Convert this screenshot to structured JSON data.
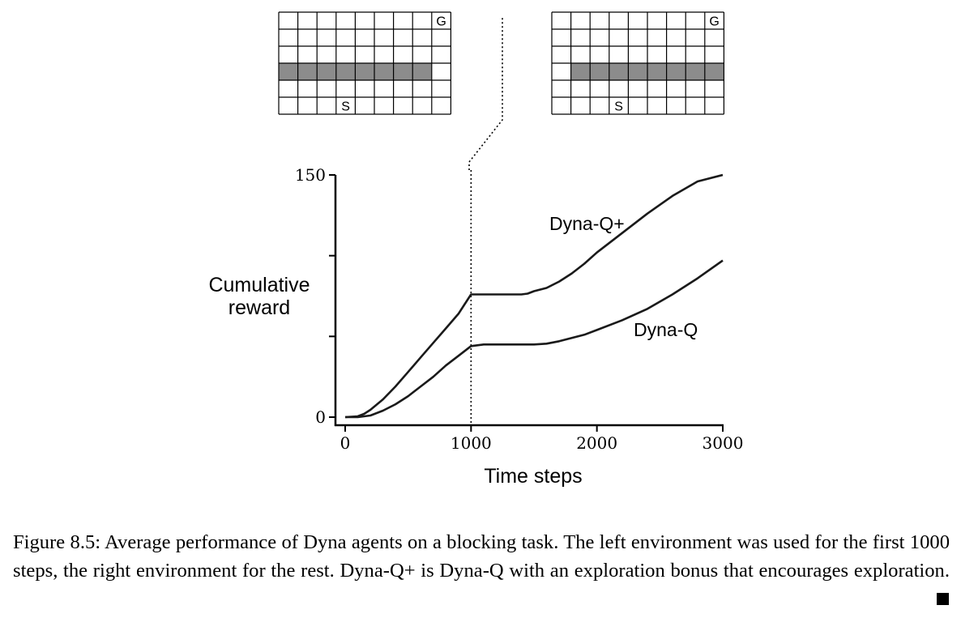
{
  "chart_data": {
    "type": "line",
    "xlabel": "Time steps",
    "ylabel_line1": "Cumulative",
    "ylabel_line2": "reward",
    "xlim": [
      0,
      3000
    ],
    "ylim": [
      0,
      150
    ],
    "xticks": [
      0,
      1000,
      2000,
      3000
    ],
    "yticks_labeled": [
      0,
      150
    ],
    "yticks_minor": [
      50,
      100
    ],
    "environment_change_step": 1000,
    "series": [
      {
        "name": "Dyna-Q+",
        "x": [
          0,
          100,
          150,
          200,
          300,
          400,
          500,
          600,
          700,
          800,
          900,
          1000,
          1100,
          1200,
          1300,
          1400,
          1450,
          1500,
          1600,
          1700,
          1800,
          1900,
          2000,
          2200,
          2400,
          2600,
          2800,
          3000
        ],
        "y": [
          0,
          0.5,
          2,
          4.5,
          11,
          19,
          28,
          37,
          46,
          55,
          64,
          76,
          76,
          76,
          76,
          76,
          76.5,
          78,
          80,
          84,
          89,
          95,
          102,
          114,
          126,
          137,
          146,
          150
        ]
      },
      {
        "name": "Dyna-Q",
        "x": [
          0,
          100,
          150,
          200,
          300,
          400,
          500,
          600,
          700,
          800,
          900,
          1000,
          1100,
          1200,
          1300,
          1400,
          1500,
          1600,
          1700,
          1800,
          1900,
          2000,
          2200,
          2400,
          2600,
          2800,
          3000
        ],
        "y": [
          0,
          0,
          0.5,
          1,
          4,
          8,
          13,
          19,
          25,
          32,
          38,
          44,
          45,
          45,
          45,
          45,
          45,
          45.5,
          47,
          49,
          51,
          54,
          60,
          67,
          76,
          86,
          97
        ]
      }
    ],
    "annotations": [
      "Dyna-Q+",
      "Dyna-Q"
    ],
    "grid": false,
    "legend": "none (curves labeled directly)"
  },
  "environments": {
    "rows": 6,
    "cols": 9,
    "goal_label": "G",
    "start_label": "S",
    "left": {
      "goal": [
        0,
        8
      ],
      "start": [
        5,
        3
      ],
      "wall_row": 3,
      "wall_cols": [
        0,
        1,
        2,
        3,
        4,
        5,
        6,
        7
      ]
    },
    "right": {
      "goal": [
        0,
        8
      ],
      "start": [
        5,
        3
      ],
      "wall_row": 3,
      "wall_cols": [
        1,
        2,
        3,
        4,
        5,
        6,
        7,
        8
      ]
    }
  },
  "colors": {
    "wall": "#8c8c8c",
    "line": "#1a1a1a",
    "grid": "#000000"
  },
  "caption": {
    "label": "Figure 8.5:",
    "line1": "Average performance of Dyna agents on a blocking task. The left environment",
    "line2": "was used for the first 1000 steps, the right environment for the rest. Dyna-Q+ is Dyna-Q",
    "line3": "with an exploration bonus that encourages exploration."
  }
}
